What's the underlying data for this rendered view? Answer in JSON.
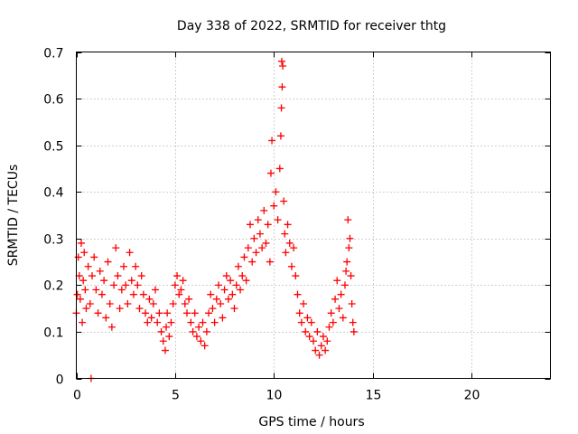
{
  "chart_data": {
    "type": "scatter",
    "title": "Day 338 of 2022, SRMTID for receiver thtg",
    "xlabel": "GPS time / hours",
    "ylabel": "SRMTID / TECUs",
    "xlim": [
      0,
      24
    ],
    "ylim": [
      0,
      0.7
    ],
    "xticks": [
      0,
      5,
      10,
      15,
      20
    ],
    "xtick_labels": [
      "0",
      "5",
      "10",
      "15",
      "20"
    ],
    "yticks": [
      0,
      0.1,
      0.2,
      0.3,
      0.4,
      0.5,
      0.6,
      0.7
    ],
    "ytick_labels": [
      "0",
      "0.1",
      "0.2",
      "0.3",
      "0.4",
      "0.5",
      "0.6",
      "0.7"
    ],
    "grid": true,
    "marker": "plus",
    "color": "#ff0000",
    "series": [
      {
        "name": "SRMTID",
        "points": [
          [
            0.0,
            0.14
          ],
          [
            0.05,
            0.18
          ],
          [
            0.1,
            0.26
          ],
          [
            0.15,
            0.22
          ],
          [
            0.2,
            0.17
          ],
          [
            0.25,
            0.29
          ],
          [
            0.3,
            0.12
          ],
          [
            0.35,
            0.21
          ],
          [
            0.4,
            0.27
          ],
          [
            0.45,
            0.19
          ],
          [
            0.5,
            0.15
          ],
          [
            0.6,
            0.24
          ],
          [
            0.7,
            0.16
          ],
          [
            0.8,
            0.22
          ],
          [
            0.9,
            0.26
          ],
          [
            1.0,
            0.19
          ],
          [
            1.1,
            0.14
          ],
          [
            1.2,
            0.23
          ],
          [
            1.3,
            0.18
          ],
          [
            1.4,
            0.21
          ],
          [
            1.5,
            0.13
          ],
          [
            1.6,
            0.25
          ],
          [
            1.7,
            0.16
          ],
          [
            1.8,
            0.11
          ],
          [
            1.9,
            0.2
          ],
          [
            2.0,
            0.28
          ],
          [
            2.1,
            0.22
          ],
          [
            2.2,
            0.15
          ],
          [
            2.3,
            0.19
          ],
          [
            2.4,
            0.24
          ],
          [
            2.5,
            0.2
          ],
          [
            2.6,
            0.16
          ],
          [
            2.7,
            0.27
          ],
          [
            2.8,
            0.21
          ],
          [
            2.9,
            0.18
          ],
          [
            3.0,
            0.24
          ],
          [
            3.1,
            0.2
          ],
          [
            3.2,
            0.15
          ],
          [
            3.3,
            0.22
          ],
          [
            3.4,
            0.18
          ],
          [
            3.5,
            0.14
          ],
          [
            3.6,
            0.12
          ],
          [
            3.7,
            0.17
          ],
          [
            3.8,
            0.13
          ],
          [
            3.9,
            0.16
          ],
          [
            4.0,
            0.19
          ],
          [
            4.1,
            0.12
          ],
          [
            4.2,
            0.14
          ],
          [
            4.3,
            0.1
          ],
          [
            4.4,
            0.08
          ],
          [
            4.5,
            0.06
          ],
          [
            4.55,
            0.11
          ],
          [
            4.6,
            0.14
          ],
          [
            4.7,
            0.09
          ],
          [
            4.8,
            0.12
          ],
          [
            4.9,
            0.16
          ],
          [
            5.0,
            0.2
          ],
          [
            5.1,
            0.22
          ],
          [
            5.2,
            0.18
          ],
          [
            5.3,
            0.19
          ],
          [
            5.4,
            0.21
          ],
          [
            5.5,
            0.16
          ],
          [
            5.6,
            0.14
          ],
          [
            5.7,
            0.17
          ],
          [
            5.8,
            0.12
          ],
          [
            5.9,
            0.1
          ],
          [
            6.0,
            0.14
          ],
          [
            6.1,
            0.09
          ],
          [
            6.2,
            0.11
          ],
          [
            6.3,
            0.08
          ],
          [
            6.4,
            0.12
          ],
          [
            6.5,
            0.07
          ],
          [
            6.6,
            0.1
          ],
          [
            6.7,
            0.14
          ],
          [
            6.8,
            0.18
          ],
          [
            6.9,
            0.15
          ],
          [
            7.0,
            0.12
          ],
          [
            7.1,
            0.17
          ],
          [
            7.2,
            0.2
          ],
          [
            7.3,
            0.16
          ],
          [
            7.4,
            0.13
          ],
          [
            7.5,
            0.19
          ],
          [
            7.6,
            0.22
          ],
          [
            7.7,
            0.17
          ],
          [
            7.8,
            0.21
          ],
          [
            7.9,
            0.18
          ],
          [
            8.0,
            0.15
          ],
          [
            8.1,
            0.2
          ],
          [
            8.2,
            0.24
          ],
          [
            8.3,
            0.19
          ],
          [
            8.4,
            0.22
          ],
          [
            8.5,
            0.26
          ],
          [
            8.6,
            0.21
          ],
          [
            8.7,
            0.28
          ],
          [
            8.8,
            0.33
          ],
          [
            8.9,
            0.25
          ],
          [
            9.0,
            0.3
          ],
          [
            9.1,
            0.27
          ],
          [
            9.2,
            0.34
          ],
          [
            9.3,
            0.31
          ],
          [
            9.4,
            0.28
          ],
          [
            9.5,
            0.36
          ],
          [
            9.6,
            0.29
          ],
          [
            9.7,
            0.33
          ],
          [
            9.8,
            0.25
          ],
          [
            9.85,
            0.44
          ],
          [
            9.9,
            0.51
          ],
          [
            10.0,
            0.37
          ],
          [
            10.1,
            0.4
          ],
          [
            10.2,
            0.34
          ],
          [
            10.3,
            0.45
          ],
          [
            10.35,
            0.52
          ],
          [
            10.38,
            0.58
          ],
          [
            10.4,
            0.68
          ],
          [
            10.42,
            0.625
          ],
          [
            10.45,
            0.67
          ],
          [
            10.5,
            0.38
          ],
          [
            10.55,
            0.31
          ],
          [
            10.6,
            0.27
          ],
          [
            10.7,
            0.33
          ],
          [
            10.8,
            0.29
          ],
          [
            10.9,
            0.24
          ],
          [
            11.0,
            0.28
          ],
          [
            11.1,
            0.22
          ],
          [
            11.2,
            0.18
          ],
          [
            11.3,
            0.14
          ],
          [
            11.4,
            0.12
          ],
          [
            11.5,
            0.16
          ],
          [
            11.6,
            0.1
          ],
          [
            11.7,
            0.13
          ],
          [
            11.8,
            0.09
          ],
          [
            11.9,
            0.12
          ],
          [
            12.0,
            0.08
          ],
          [
            12.1,
            0.06
          ],
          [
            12.2,
            0.1
          ],
          [
            12.3,
            0.05
          ],
          [
            12.4,
            0.07
          ],
          [
            12.5,
            0.09
          ],
          [
            12.6,
            0.06
          ],
          [
            12.7,
            0.08
          ],
          [
            12.8,
            0.11
          ],
          [
            12.9,
            0.14
          ],
          [
            13.0,
            0.12
          ],
          [
            13.1,
            0.17
          ],
          [
            13.2,
            0.21
          ],
          [
            13.3,
            0.15
          ],
          [
            13.4,
            0.18
          ],
          [
            13.5,
            0.13
          ],
          [
            13.6,
            0.2
          ],
          [
            13.65,
            0.23
          ],
          [
            13.7,
            0.25
          ],
          [
            13.75,
            0.34
          ],
          [
            13.8,
            0.28
          ],
          [
            13.85,
            0.3
          ],
          [
            13.9,
            0.22
          ],
          [
            13.95,
            0.16
          ],
          [
            14.0,
            0.12
          ],
          [
            14.05,
            0.1
          ],
          [
            0.75,
            0.0
          ]
        ]
      }
    ]
  }
}
